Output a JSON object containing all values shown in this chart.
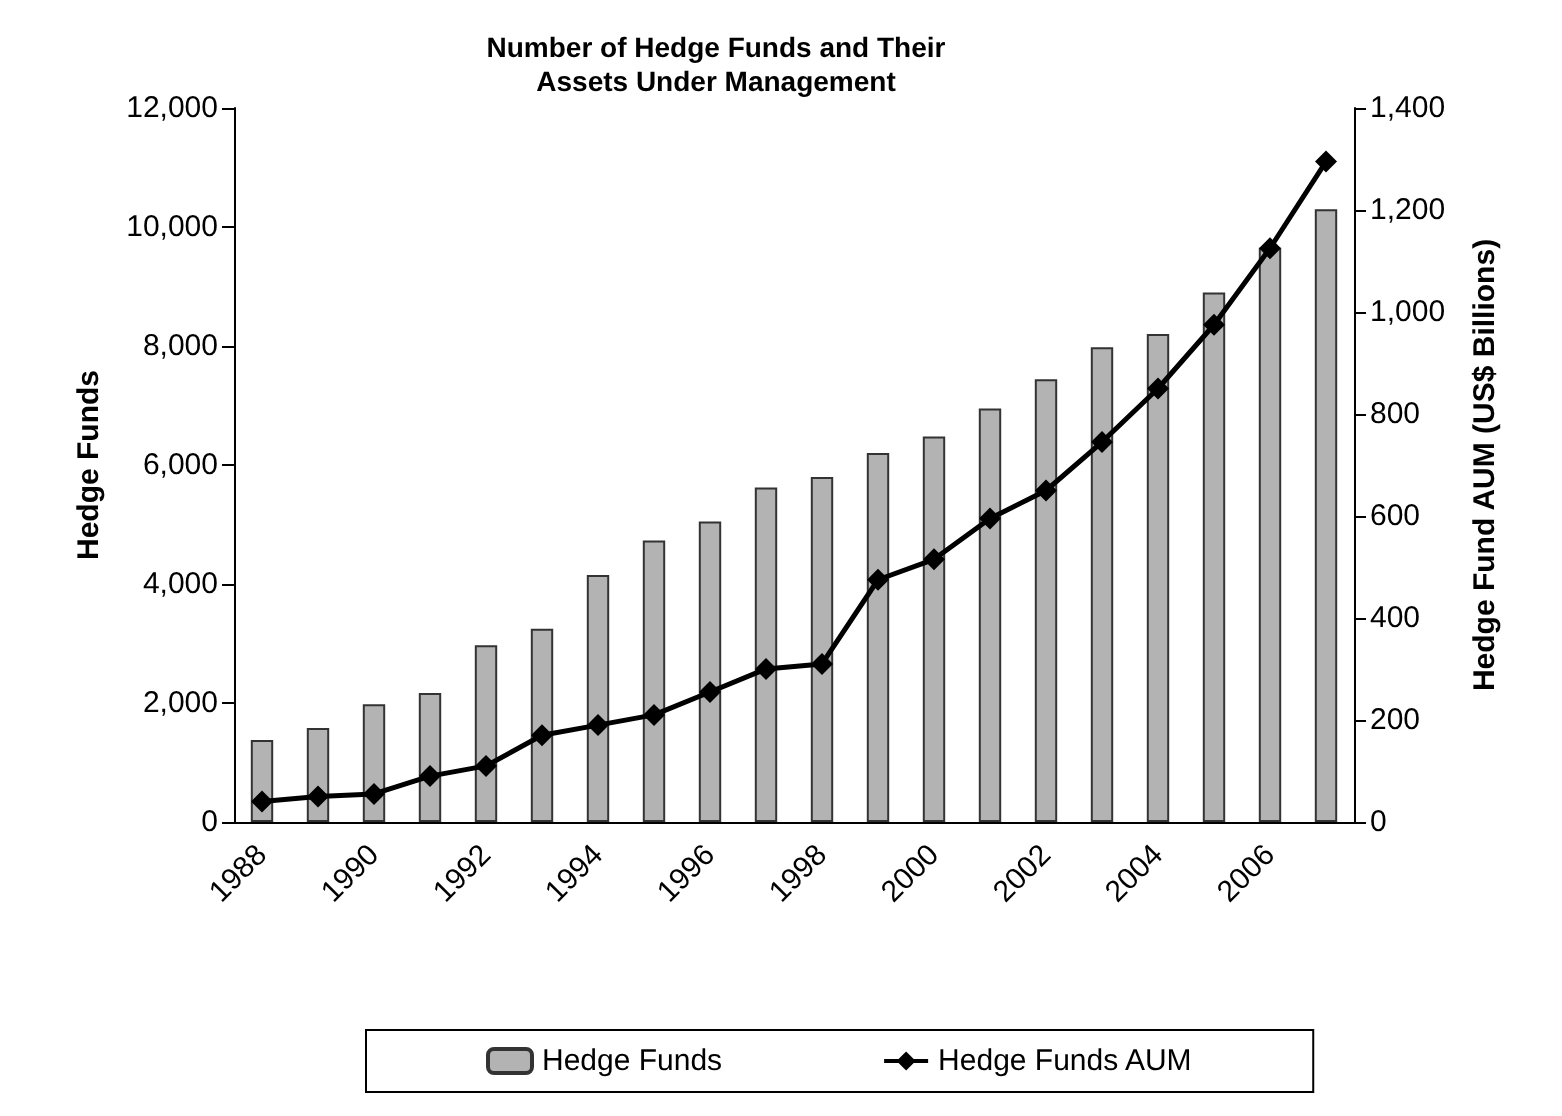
{
  "chart_data": {
    "type": "bar",
    "title": "Number of Hedge Funds and Their\nAssets Under Management",
    "ylabel": "Hedge Funds",
    "y2label": "Hedge Fund AUM (US$ Billions)",
    "categories": [
      "1988",
      null,
      "1990",
      null,
      "1992",
      null,
      "1994",
      null,
      "1996",
      null,
      "1998",
      null,
      "2000",
      null,
      "2002",
      null,
      "2004",
      null,
      "2006",
      null
    ],
    "series": [
      {
        "name": "Hedge Funds",
        "color": "#b3b3b3",
        "values": [
          1380,
          1580,
          1980,
          2170,
          2970,
          3250,
          4150,
          4730,
          5050,
          5620,
          5800,
          6200,
          6480,
          6950,
          7440,
          7980,
          8200,
          8900,
          9650,
          10300
        ]
      },
      {
        "name": "Hedge Funds AUM",
        "type": "line",
        "axis": "y2",
        "color": "#000000",
        "values": [
          40,
          50,
          55,
          90,
          110,
          170,
          190,
          210,
          255,
          300,
          310,
          475,
          515,
          595,
          650,
          745,
          850,
          975,
          1125,
          1295
        ]
      }
    ],
    "ylim": [
      0,
      12000
    ],
    "yticks": [
      0,
      {
        "value": 2000,
        "label": "2,000"
      },
      {
        "value": 4000,
        "label": "4,000"
      },
      {
        "value": 6000,
        "label": "6,000"
      },
      {
        "value": 8000,
        "label": "8,000"
      },
      {
        "value": 10000,
        "label": "10,000"
      },
      {
        "value": 12000,
        "label": "12,000"
      }
    ],
    "y2lim": [
      0,
      1400
    ],
    "y2ticks": [
      0,
      200,
      400,
      600,
      800,
      {
        "value": 1000,
        "label": "1,000"
      },
      {
        "value": 1200,
        "label": "1,200"
      },
      {
        "value": 1400,
        "label": "1,400"
      }
    ],
    "marker": "diamond",
    "grid": false,
    "legend": "bottom"
  }
}
